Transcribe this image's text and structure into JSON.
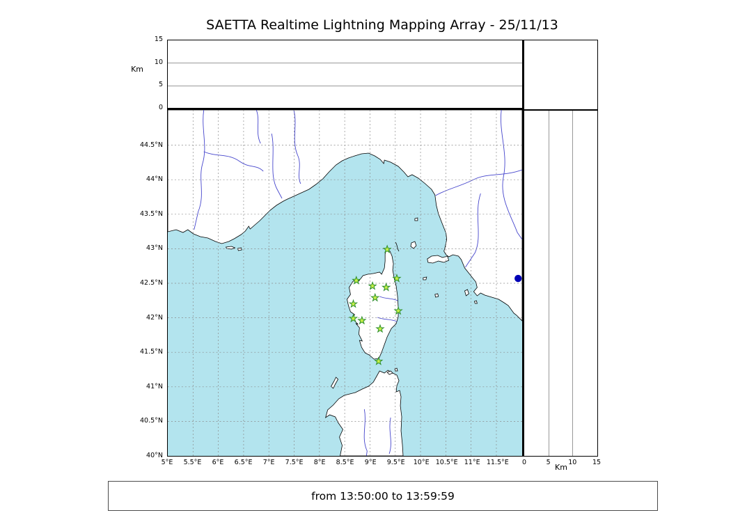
{
  "title": "SAETTA Realtime Lightning Mapping Array - 25/11/13",
  "footer": {
    "text": "from 13:50:00 to 13:59:59"
  },
  "chart_data": {
    "type": "scatter",
    "title": "SAETTA Realtime Lightning Mapping Array - 25/11/13",
    "date": "25/11/13",
    "time_window": {
      "from": "13:50:00",
      "to": "13:59:59"
    },
    "panels": {
      "altitude_top": {
        "ylabel": "Km",
        "ticks": [
          0,
          5,
          10,
          15
        ],
        "range": [
          0,
          15
        ],
        "gridlines_km": [
          5,
          10
        ],
        "points": []
      },
      "map": {
        "lon_range": [
          5,
          12
        ],
        "lat_range": [
          40,
          45
        ],
        "lon_ticks": [
          "5°E",
          "5.5°E",
          "6°E",
          "6.5°E",
          "7°E",
          "7.5°E",
          "8°E",
          "8.5°E",
          "9°E",
          "9.5°E",
          "10°E",
          "10.5°E",
          "11°E",
          "11.5°E"
        ],
        "lon_tick_values": [
          5,
          5.5,
          6,
          6.5,
          7,
          7.5,
          8,
          8.5,
          9,
          9.5,
          10,
          10.5,
          11,
          11.5
        ],
        "lat_ticks": [
          "44.5°N",
          "44°N",
          "43.5°N",
          "43°N",
          "42.5°N",
          "42°N",
          "41.5°N",
          "41°N",
          "40.5°N",
          "40°N"
        ],
        "lat_tick_values": [
          44.5,
          44,
          43.5,
          43,
          42.5,
          42,
          41.5,
          41,
          40.5,
          40
        ],
        "grid": true,
        "sea_color": "#b3e4ee",
        "land_color": "#ffffff",
        "river_color": "#4444cc",
        "station_marker": {
          "shape": "star",
          "fill": "#c8f148",
          "stroke": "#2d8f2d"
        },
        "stations": [
          {
            "lon": 9.34,
            "lat": 42.99
          },
          {
            "lon": 9.53,
            "lat": 42.57
          },
          {
            "lon": 8.73,
            "lat": 42.54
          },
          {
            "lon": 9.05,
            "lat": 42.46
          },
          {
            "lon": 9.32,
            "lat": 42.44
          },
          {
            "lon": 9.1,
            "lat": 42.29
          },
          {
            "lon": 8.67,
            "lat": 42.2
          },
          {
            "lon": 9.56,
            "lat": 42.1
          },
          {
            "lon": 8.67,
            "lat": 41.99
          },
          {
            "lon": 8.84,
            "lat": 41.96
          },
          {
            "lon": 9.2,
            "lat": 41.84
          },
          {
            "lon": 9.17,
            "lat": 41.37
          }
        ],
        "events": [
          {
            "lon": 11.93,
            "lat": 42.57,
            "color": "#0000b6"
          }
        ]
      },
      "altitude_right": {
        "xlabel": "Km",
        "ticks": [
          0,
          5,
          10,
          15
        ],
        "range": [
          0,
          15
        ],
        "gridlines_km": [
          5,
          10
        ],
        "points": []
      }
    }
  }
}
